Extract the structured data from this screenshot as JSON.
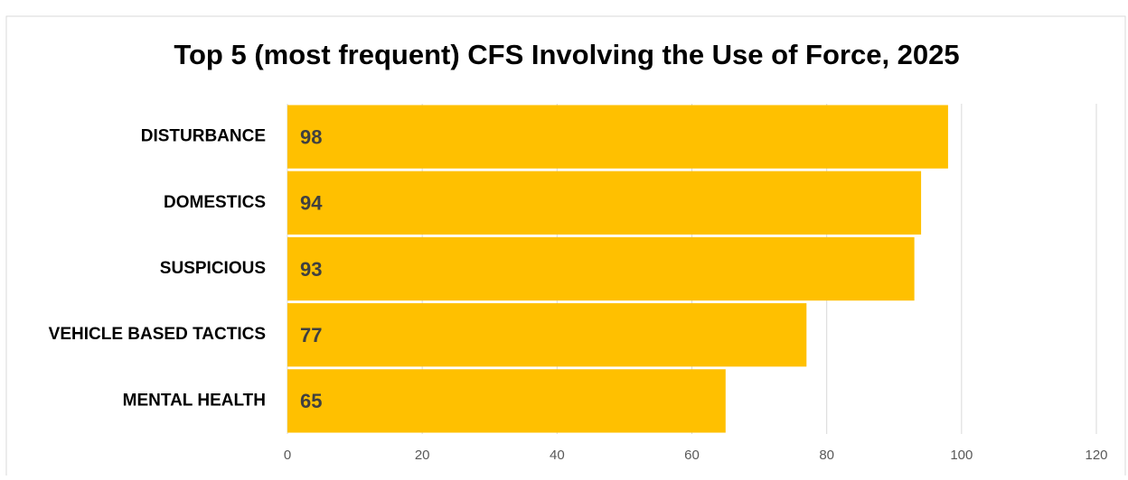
{
  "chart_data": {
    "type": "bar",
    "orientation": "horizontal",
    "title": "Top 5 (most frequent) CFS Involving the Use of Force, 2025",
    "categories": [
      "DISTURBANCE",
      "DOMESTICS",
      "SUSPICIOUS",
      "VEHICLE BASED TACTICS",
      "MENTAL HEALTH"
    ],
    "values": [
      98,
      94,
      93,
      77,
      65
    ],
    "color": "#ffc000",
    "xlim": [
      0,
      120
    ],
    "xticks": [
      0,
      20,
      40,
      60,
      80,
      100,
      120
    ],
    "grid": true
  }
}
